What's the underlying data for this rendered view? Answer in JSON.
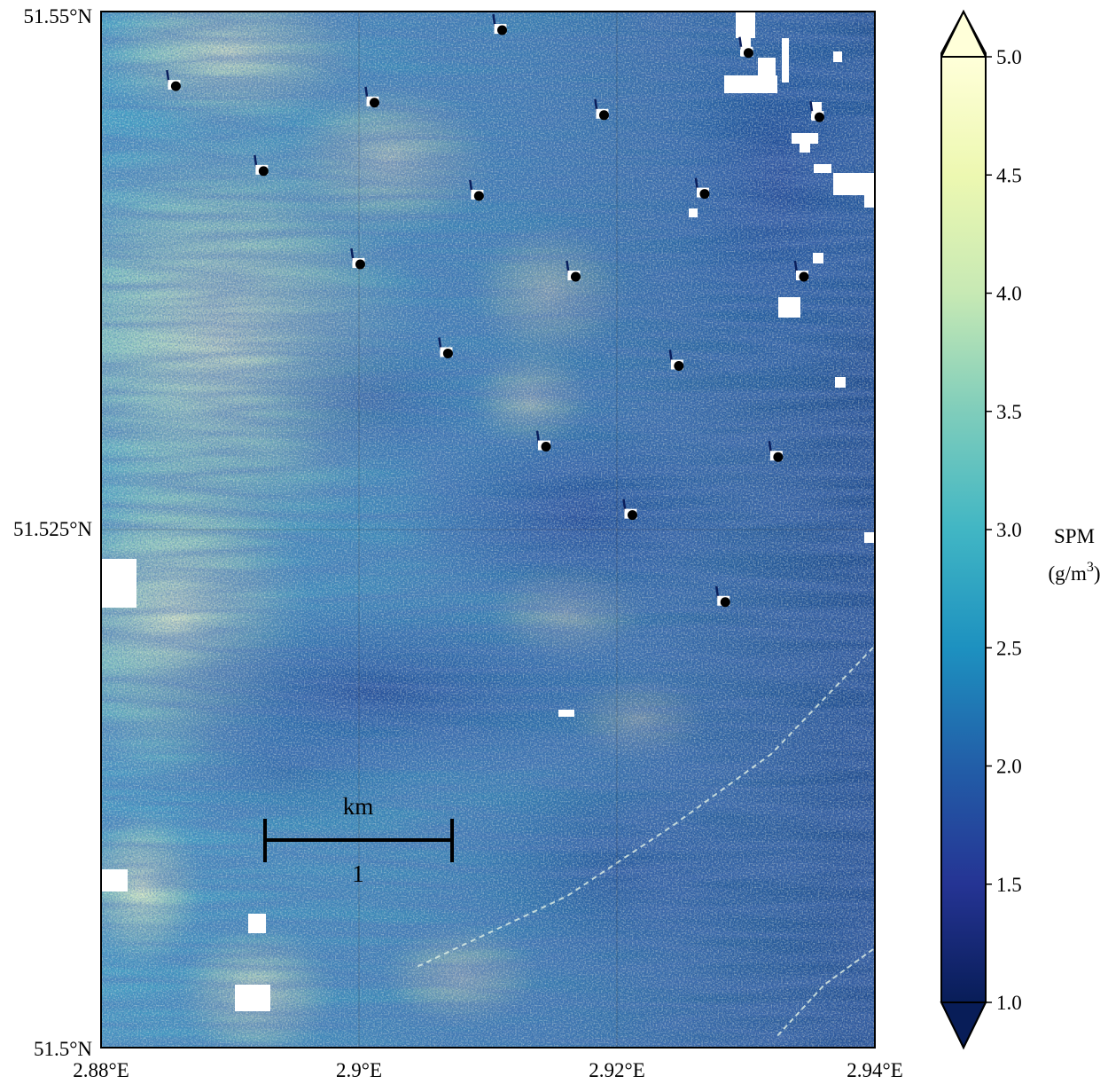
{
  "map": {
    "lat_ticks": [
      {
        "value": 51.55,
        "label": "51.55°N"
      },
      {
        "value": 51.525,
        "label": "51.525°N"
      },
      {
        "value": 51.5,
        "label": "51.5°N"
      }
    ],
    "lon_ticks": [
      {
        "value": 2.88,
        "label": "2.88°E"
      },
      {
        "value": 2.9,
        "label": "2.9°E"
      },
      {
        "value": 2.92,
        "label": "2.92°E"
      },
      {
        "value": 2.94,
        "label": "2.94°E"
      }
    ],
    "lon_range": [
      2.88,
      2.94
    ],
    "lat_range": [
      51.5,
      51.55
    ],
    "gridlines": true,
    "scale_bar": {
      "unit": "km",
      "length_label": "1",
      "length_km": 1
    },
    "turbines": [
      {
        "lon": 2.8858,
        "lat": 51.5464
      },
      {
        "lon": 2.9012,
        "lat": 51.5456
      },
      {
        "lon": 2.9111,
        "lat": 51.5491
      },
      {
        "lon": 2.919,
        "lat": 51.545
      },
      {
        "lon": 2.9302,
        "lat": 51.548
      },
      {
        "lon": 2.9357,
        "lat": 51.5449
      },
      {
        "lon": 2.8926,
        "lat": 51.5423
      },
      {
        "lon": 2.9093,
        "lat": 51.5411
      },
      {
        "lon": 2.9268,
        "lat": 51.5412
      },
      {
        "lon": 2.9001,
        "lat": 51.5378
      },
      {
        "lon": 2.9168,
        "lat": 51.5372
      },
      {
        "lon": 2.9345,
        "lat": 51.5372
      },
      {
        "lon": 2.9069,
        "lat": 51.5335
      },
      {
        "lon": 2.9248,
        "lat": 51.5329
      },
      {
        "lon": 2.9145,
        "lat": 51.529
      },
      {
        "lon": 2.9325,
        "lat": 51.5285
      },
      {
        "lon": 2.9212,
        "lat": 51.5257
      },
      {
        "lon": 2.9284,
        "lat": 51.5215
      }
    ]
  },
  "colorbar": {
    "label_line1": "SPM",
    "label_units_base": "(g/m",
    "label_units_exp": "3",
    "label_units_close": ")",
    "min": 1.0,
    "max": 5.0,
    "extend": "both",
    "colormap": "YlGnBu_r",
    "ticks": [
      {
        "value": 1.0,
        "label": "1.0"
      },
      {
        "value": 1.5,
        "label": "1.5"
      },
      {
        "value": 2.0,
        "label": "2.0"
      },
      {
        "value": 2.5,
        "label": "2.5"
      },
      {
        "value": 3.0,
        "label": "3.0"
      },
      {
        "value": 3.5,
        "label": "3.5"
      },
      {
        "value": 4.0,
        "label": "4.0"
      },
      {
        "value": 4.5,
        "label": "4.5"
      },
      {
        "value": 5.0,
        "label": "5.0"
      }
    ],
    "colors": [
      "#081d58",
      "#253494",
      "#225ea8",
      "#1d91c0",
      "#41b6c4",
      "#7fcdbb",
      "#c7e9b4",
      "#edf8b1",
      "#ffffd9"
    ]
  }
}
